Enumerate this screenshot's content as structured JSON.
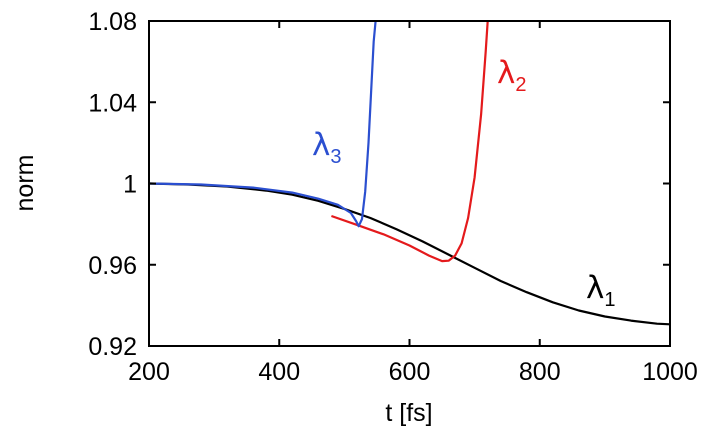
{
  "chart_data": {
    "type": "line",
    "xlabel": "t [fs]",
    "ylabel": "norm",
    "xlim": [
      200,
      1000
    ],
    "ylim": [
      0.92,
      1.08
    ],
    "xticks": [
      200,
      400,
      600,
      800,
      1000
    ],
    "xtick_labels": [
      "200",
      "400",
      "600",
      "800",
      "1000"
    ],
    "yticks": [
      0.92,
      0.96,
      1.0,
      1.04,
      1.08
    ],
    "ytick_labels": [
      "0.92",
      "0.96",
      "1",
      "1.04",
      "1.08"
    ],
    "grid": false,
    "series": [
      {
        "name": "λ1",
        "label_main": "λ",
        "label_sub": "1",
        "color": "#000000",
        "x": [
          200,
          260,
          320,
          380,
          420,
          460,
          500,
          540,
          580,
          620,
          660,
          700,
          740,
          780,
          820,
          860,
          900,
          940,
          980,
          1000
        ],
        "y": [
          1.0,
          0.9995,
          0.9985,
          0.9965,
          0.9945,
          0.9915,
          0.9875,
          0.983,
          0.9775,
          0.9715,
          0.965,
          0.9585,
          0.952,
          0.9465,
          0.9415,
          0.9375,
          0.9345,
          0.9325,
          0.931,
          0.9307
        ]
      },
      {
        "name": "λ2",
        "label_main": "λ",
        "label_sub": "2",
        "color": "#e41a1c",
        "x": [
          480,
          520,
          560,
          600,
          630,
          650,
          660,
          670,
          680,
          690,
          700,
          710,
          717,
          720
        ],
        "y": [
          0.984,
          0.9795,
          0.975,
          0.9695,
          0.9645,
          0.9618,
          0.962,
          0.9645,
          0.9705,
          0.983,
          1.003,
          1.034,
          1.065,
          1.08
        ]
      },
      {
        "name": "λ3",
        "label_main": "λ",
        "label_sub": "3",
        "color": "#2b4fd0",
        "x": [
          200,
          280,
          360,
          420,
          460,
          490,
          510,
          518,
          522,
          527,
          532,
          537,
          541,
          545,
          548
        ],
        "y": [
          1.0,
          0.9995,
          0.998,
          0.9955,
          0.9925,
          0.9895,
          0.9855,
          0.9815,
          0.979,
          0.9825,
          0.996,
          1.02,
          1.045,
          1.07,
          1.08
        ]
      }
    ]
  }
}
